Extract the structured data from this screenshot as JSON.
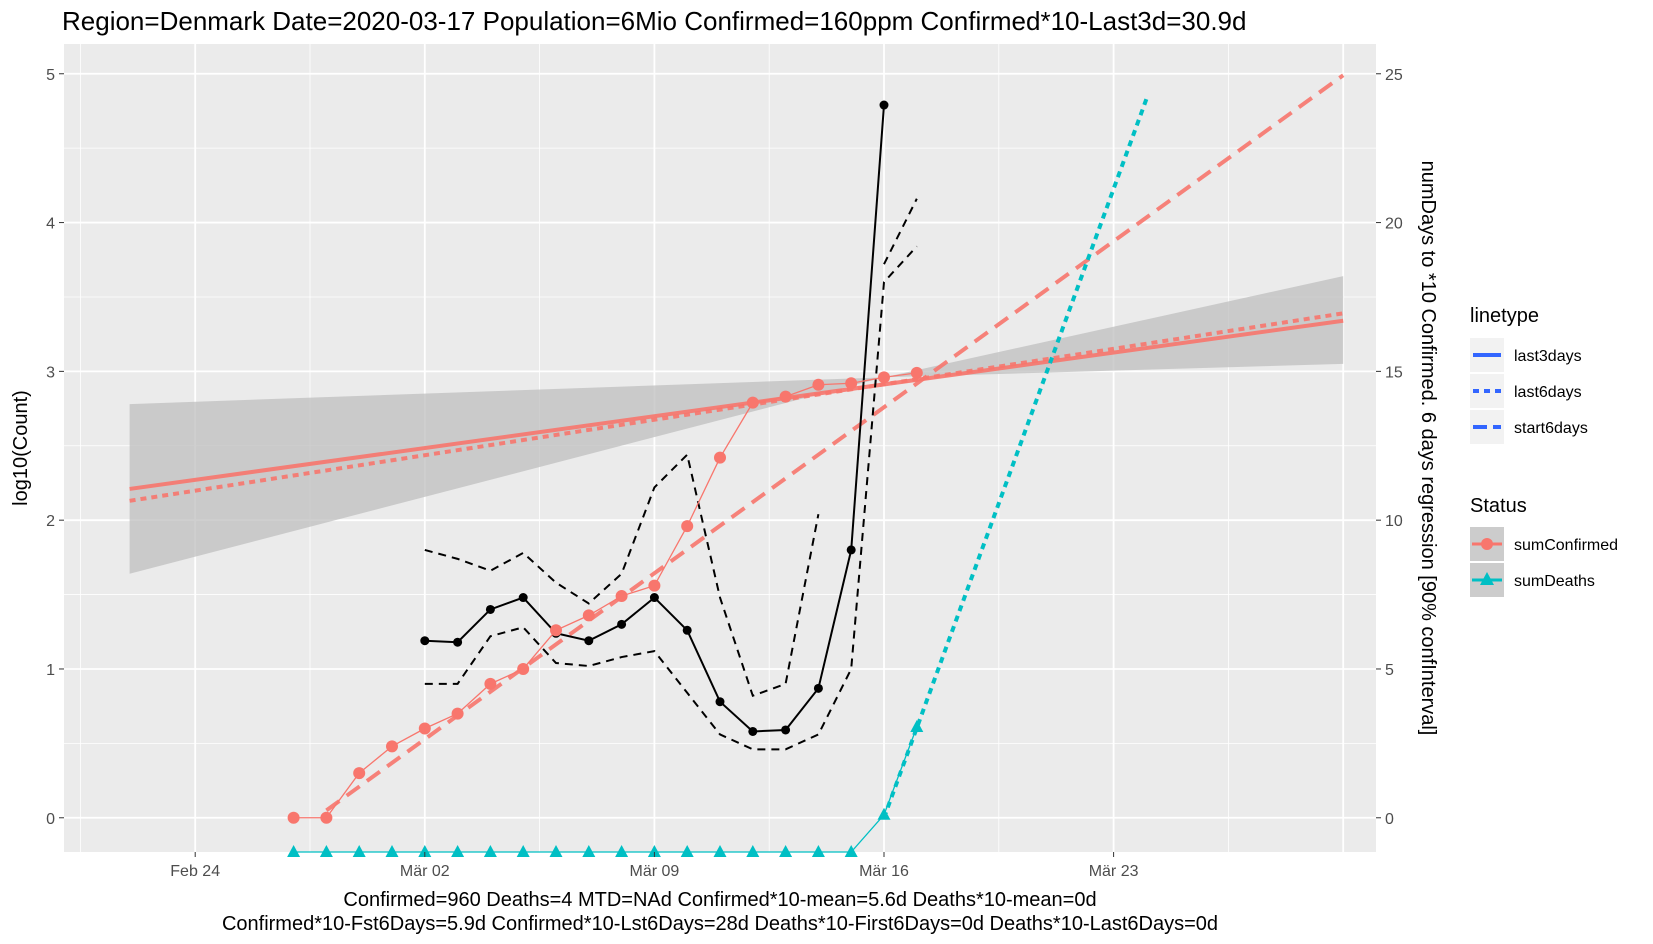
{
  "chart_data": {
    "type": "line",
    "title": "Region=Denmark Date=2020-03-17  Population=6Mio Confirmed=160ppm  Confirmed*10-Last3d=30.9d",
    "ylabel": "log10(Count)",
    "y2label": "numDays to *10 Confirmed. 6 days regression [90% confInterval]",
    "caption_lines": [
      "Confirmed=960 Deaths=4  MTD=NAd   Confirmed*10-mean=5.6d  Deaths*10-mean=0d",
      "Confirmed*10-Fst6Days=5.9d  Confirmed*10-Lst6Days=28d    Deaths*10-First6Days=0d  Deaths*10-Last6Days=0d"
    ],
    "x_ticks": [
      {
        "date": "2020-02-24",
        "label": "Feb 24"
      },
      {
        "date": "2020-03-02",
        "label": "Mär 02"
      },
      {
        "date": "2020-03-09",
        "label": "Mär 09"
      },
      {
        "date": "2020-03-16",
        "label": "Mär 16"
      },
      {
        "date": "2020-03-23",
        "label": "Mär 23"
      }
    ],
    "xlim": [
      "2020-02-20",
      "2020-03-31"
    ],
    "ylim": [
      -0.23,
      5.2
    ],
    "y_ticks": [
      0,
      1,
      2,
      3,
      4,
      5
    ],
    "y2lim": [
      -1.15,
      26.0
    ],
    "y2_ticks": [
      0,
      5,
      10,
      15,
      20,
      25
    ],
    "grid": true,
    "legend_position": "right",
    "colors": {
      "confirmed": "#F8766D",
      "deaths": "#00BFC4",
      "ribbon": "#bfbfbf",
      "panel": "#ebebeb",
      "days": "#000000",
      "legend_line": "#3366FF"
    },
    "legend": {
      "linetype": {
        "title": "linetype",
        "items": [
          "last3days",
          "last6days",
          "start6days"
        ]
      },
      "status": {
        "title": "Status",
        "items": [
          "sumConfirmed",
          "sumDeaths"
        ]
      }
    },
    "series": [
      {
        "name": "sumConfirmed",
        "axis": "left",
        "points": [
          [
            "2020-02-27",
            0
          ],
          [
            "2020-02-28",
            0
          ],
          [
            "2020-02-29",
            0.3
          ],
          [
            "2020-03-01",
            0.48
          ],
          [
            "2020-03-02",
            0.6
          ],
          [
            "2020-03-03",
            0.7
          ],
          [
            "2020-03-04",
            0.9
          ],
          [
            "2020-03-05",
            1.0
          ],
          [
            "2020-03-06",
            1.26
          ],
          [
            "2020-03-07",
            1.36
          ],
          [
            "2020-03-08",
            1.49
          ],
          [
            "2020-03-09",
            1.56
          ],
          [
            "2020-03-10",
            1.96
          ],
          [
            "2020-03-11",
            2.42
          ],
          [
            "2020-03-12",
            2.79
          ],
          [
            "2020-03-13",
            2.83
          ],
          [
            "2020-03-14",
            2.91
          ],
          [
            "2020-03-15",
            2.92
          ],
          [
            "2020-03-16",
            2.96
          ],
          [
            "2020-03-17",
            2.99
          ]
        ]
      },
      {
        "name": "sumDeaths",
        "axis": "left",
        "points": [
          [
            "2020-02-27",
            -0.23
          ],
          [
            "2020-02-28",
            -0.23
          ],
          [
            "2020-02-29",
            -0.23
          ],
          [
            "2020-03-01",
            -0.23
          ],
          [
            "2020-03-02",
            -0.23
          ],
          [
            "2020-03-03",
            -0.23
          ],
          [
            "2020-03-04",
            -0.23
          ],
          [
            "2020-03-05",
            -0.23
          ],
          [
            "2020-03-06",
            -0.23
          ],
          [
            "2020-03-07",
            -0.23
          ],
          [
            "2020-03-08",
            -0.23
          ],
          [
            "2020-03-09",
            -0.23
          ],
          [
            "2020-03-10",
            -0.23
          ],
          [
            "2020-03-11",
            -0.23
          ],
          [
            "2020-03-12",
            -0.23
          ],
          [
            "2020-03-13",
            -0.23
          ],
          [
            "2020-03-14",
            -0.23
          ],
          [
            "2020-03-15",
            -0.23
          ],
          [
            "2020-03-16",
            0.02
          ],
          [
            "2020-03-17",
            0.61
          ]
        ]
      },
      {
        "axis": "right",
        "points": [
          [
            "2020-03-02",
            5.95
          ],
          [
            "2020-03-03",
            5.9
          ],
          [
            "2020-03-04",
            7.0
          ],
          [
            "2020-03-05",
            7.4
          ],
          [
            "2020-03-06",
            6.2
          ],
          [
            "2020-03-07",
            5.95
          ],
          [
            "2020-03-08",
            6.5
          ],
          [
            "2020-03-09",
            7.4
          ],
          [
            "2020-03-10",
            6.3
          ],
          [
            "2020-03-11",
            3.9
          ],
          [
            "2020-03-12",
            2.9
          ],
          [
            "2020-03-13",
            2.95
          ],
          [
            "2020-03-14",
            4.35
          ],
          [
            "2020-03-15",
            9.0
          ],
          [
            "2020-03-16",
            23.95
          ]
        ]
      },
      {
        "axis": "right",
        "interval": "upper",
        "points": [
          [
            "2020-03-02",
            9.0
          ],
          [
            "2020-03-03",
            8.7
          ],
          [
            "2020-03-04",
            8.3
          ],
          [
            "2020-03-05",
            8.9
          ],
          [
            "2020-03-06",
            7.9
          ],
          [
            "2020-03-07",
            7.2
          ],
          [
            "2020-03-08",
            8.2
          ],
          [
            "2020-03-09",
            11.1
          ],
          [
            "2020-03-10",
            12.2
          ],
          [
            "2020-03-11",
            7.4
          ],
          [
            "2020-03-12",
            4.1
          ],
          [
            "2020-03-13",
            4.5
          ],
          [
            "2020-03-14",
            10.2
          ],
          [
            "2020-03-15",
            null
          ],
          [
            "2020-03-16",
            18.6
          ],
          [
            "2020-03-17",
            20.8
          ]
        ]
      },
      {
        "axis": "right",
        "interval": "lower",
        "points": [
          [
            "2020-03-02",
            4.5
          ],
          [
            "2020-03-03",
            4.5
          ],
          [
            "2020-03-04",
            6.1
          ],
          [
            "2020-03-05",
            6.4
          ],
          [
            "2020-03-06",
            5.2
          ],
          [
            "2020-03-07",
            5.1
          ],
          [
            "2020-03-08",
            5.4
          ],
          [
            "2020-03-09",
            5.6
          ],
          [
            "2020-03-10",
            4.2
          ],
          [
            "2020-03-11",
            2.8
          ],
          [
            "2020-03-12",
            2.3
          ],
          [
            "2020-03-13",
            2.3
          ],
          [
            "2020-03-14",
            2.8
          ],
          [
            "2020-03-15",
            5.0
          ],
          [
            "2020-03-16",
            18.0
          ],
          [
            "2020-03-17",
            19.2
          ]
        ]
      }
    ],
    "regressions": [
      {
        "name": "last3days",
        "series": "sumConfirmed",
        "dash": "solid",
        "points": [
          [
            "2020-02-22",
            2.21
          ],
          [
            "2020-03-30",
            3.34
          ]
        ]
      },
      {
        "name": "last6days",
        "series": "sumConfirmed",
        "dash": "dotted",
        "points": [
          [
            "2020-02-22",
            2.13
          ],
          [
            "2020-03-30",
            3.39
          ]
        ]
      },
      {
        "name": "start6days",
        "series": "sumConfirmed",
        "dash": "dashed",
        "points": [
          [
            "2020-02-28",
            0.05
          ],
          [
            "2020-03-30",
            4.99
          ]
        ]
      },
      {
        "name": "start6days",
        "series": "sumDeaths",
        "dash": "dotted",
        "points": [
          [
            "2020-03-16",
            0.0
          ],
          [
            "2020-03-24",
            4.83
          ]
        ]
      }
    ],
    "ribbon": {
      "upper": [
        [
          "2020-02-22",
          2.78
        ],
        [
          "2020-03-16",
          2.96
        ],
        [
          "2020-03-30",
          3.64
        ]
      ],
      "lower": [
        [
          "2020-02-22",
          1.64
        ],
        [
          "2020-03-16",
          2.96
        ],
        [
          "2020-03-30",
          3.05
        ]
      ]
    }
  }
}
